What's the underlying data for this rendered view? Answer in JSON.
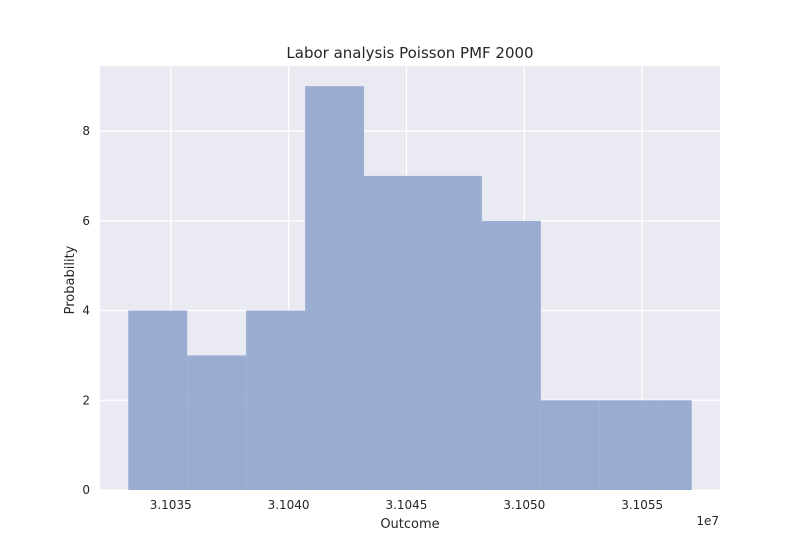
{
  "chart_data": {
    "type": "bar",
    "title": "Labor analysis Poisson PMF 2000",
    "xlabel": "Outcome",
    "ylabel": "Probability",
    "x_offset_label": "1e7",
    "bins": [
      {
        "x0": 3.10332,
        "x1": 3.10357,
        "value": 4
      },
      {
        "x0": 3.10357,
        "x1": 3.10382,
        "value": 3
      },
      {
        "x0": 3.10382,
        "x1": 3.10407,
        "value": 4
      },
      {
        "x0": 3.10407,
        "x1": 3.10432,
        "value": 9
      },
      {
        "x0": 3.10432,
        "x1": 3.10457,
        "value": 7
      },
      {
        "x0": 3.10457,
        "x1": 3.10482,
        "value": 7
      },
      {
        "x0": 3.10482,
        "x1": 3.10507,
        "value": 6
      },
      {
        "x0": 3.10507,
        "x1": 3.10532,
        "value": 2
      },
      {
        "x0": 3.10532,
        "x1": 3.10557,
        "value": 2
      },
      {
        "x0": 3.10557,
        "x1": 3.10571,
        "value": 2
      }
    ],
    "xticks": [
      3.1035,
      3.104,
      3.1045,
      3.105,
      3.1055
    ],
    "xtick_labels": [
      "3.1035",
      "3.1040",
      "3.1045",
      "3.1050",
      "3.1055"
    ],
    "yticks": [
      0,
      2,
      4,
      6,
      8
    ],
    "ytick_labels": [
      "0",
      "2",
      "4",
      "6",
      "8"
    ],
    "xlim": [
      3.1032,
      3.10583
    ],
    "ylim": [
      0,
      9.45
    ],
    "grid": true,
    "colors": {
      "background": "#eaeaf2",
      "bar": "#8ea3cc",
      "grid": "#ffffff"
    }
  }
}
